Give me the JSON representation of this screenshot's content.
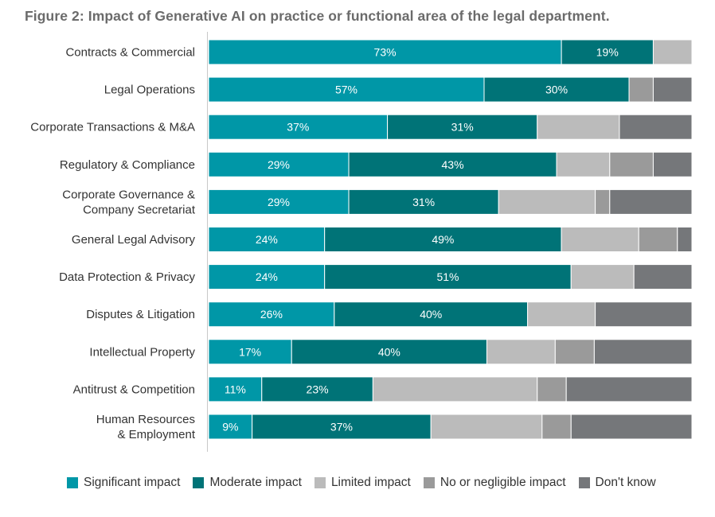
{
  "chart_data": {
    "type": "bar",
    "orientation": "horizontal",
    "stacked": true,
    "title": "Figure 2: Impact of Generative AI on practice or functional area of the legal department.",
    "xlabel": "",
    "ylabel": "",
    "xlim": [
      0,
      100
    ],
    "categories": [
      [
        "Contracts & Commercial"
      ],
      [
        "Legal Operations"
      ],
      [
        "Corporate Transactions & M&A"
      ],
      [
        "Regulatory & Compliance"
      ],
      [
        "Corporate Governance &",
        "Company Secretariat"
      ],
      [
        "General Legal Advisory"
      ],
      [
        "Data Protection & Privacy"
      ],
      [
        "Disputes & Litigation"
      ],
      [
        "Intellectual Property"
      ],
      [
        "Antitrust & Competition"
      ],
      [
        "Human Resources",
        "& Employment"
      ]
    ],
    "series": [
      {
        "name": "Significant impact",
        "color": "#0097a7",
        "values": [
          73,
          57,
          37,
          29,
          29,
          24,
          24,
          26,
          17,
          11,
          9
        ],
        "labeled": true
      },
      {
        "name": "Moderate impact",
        "color": "#007377",
        "values": [
          19,
          30,
          31,
          43,
          31,
          49,
          51,
          40,
          40,
          23,
          37
        ],
        "labeled": true
      },
      {
        "name": "Limited impact",
        "color": "#bbbbbb",
        "values": [
          8,
          0,
          17,
          11,
          20,
          16,
          13,
          14,
          14,
          34,
          23
        ],
        "labeled": false
      },
      {
        "name": "No or negligible impact",
        "color": "#9a9a9a",
        "values": [
          0,
          5,
          0,
          9,
          3,
          8,
          0,
          0,
          8,
          6,
          6
        ],
        "labeled": false
      },
      {
        "name": "Don't know",
        "color": "#75777a",
        "values": [
          0,
          8,
          15,
          8,
          17,
          3,
          12,
          20,
          20,
          26,
          25
        ],
        "labeled": false
      }
    ],
    "legend_position": "bottom",
    "grid": false
  }
}
